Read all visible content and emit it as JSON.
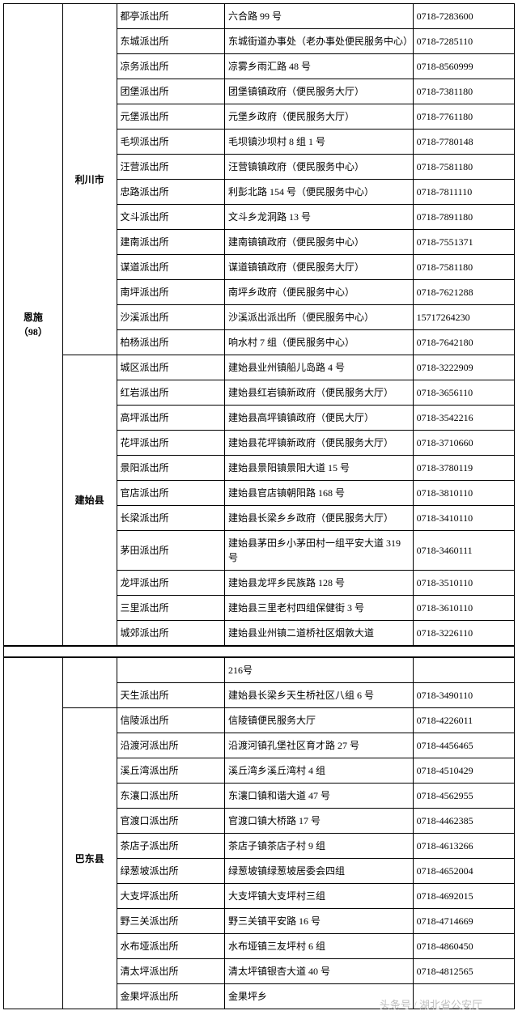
{
  "region": "恩施\n（98）",
  "watermark": "头条号 / 湖北省公安厅",
  "colwidths": {
    "region": 72,
    "city": 66,
    "station": 132,
    "addr": 230,
    "phone": 124
  },
  "colors": {
    "border": "#000000",
    "text": "#000000",
    "bg": "#ffffff",
    "watermark": "#bfbfbf"
  },
  "font": {
    "family": "SimSun",
    "size_pt": 9
  },
  "groups": [
    {
      "city": "利川市",
      "rows": [
        {
          "station": "都亭派出所",
          "addr": "六合路 99 号",
          "phone": "0718-7283600"
        },
        {
          "station": "东城派出所",
          "addr": "东城街道办事处（老办事处便民服务中心）",
          "phone": "0718-7285110"
        },
        {
          "station": "凉务派出所",
          "addr": "凉雾乡雨汇路 48 号",
          "phone": "0718-8560999"
        },
        {
          "station": "团堡派出所",
          "addr": "团堡镇镇政府（便民服务大厅）",
          "phone": "0718-7381180"
        },
        {
          "station": "元堡派出所",
          "addr": "元堡乡政府（便民服务大厅）",
          "phone": "0718-7761180"
        },
        {
          "station": "毛坝派出所",
          "addr": "毛坝镇沙坝村 8 组 1 号",
          "phone": "0718-7780148"
        },
        {
          "station": "汪营派出所",
          "addr": "汪营镇镇政府（便民服务中心）",
          "phone": "0718-7581180"
        },
        {
          "station": "忠路派出所",
          "addr": "利彭北路 154 号（便民服务中心）",
          "phone": "0718-7811110"
        },
        {
          "station": "文斗派出所",
          "addr": "文斗乡龙洞路 13 号",
          "phone": "0718-7891180"
        },
        {
          "station": "建南派出所",
          "addr": "建南镇镇政府（便民服务中心）",
          "phone": "0718-7551371"
        },
        {
          "station": "谋道派出所",
          "addr": "谋道镇镇政府（便民服务大厅）",
          "phone": "0718-7581180"
        },
        {
          "station": "南坪派出所",
          "addr": "南坪乡政府（便民服务中心）",
          "phone": "0718-7621288"
        },
        {
          "station": "沙溪派出所",
          "addr": "沙溪派出派出所（便民服务中心）",
          "phone": "15717264230"
        },
        {
          "station": "柏杨派出所",
          "addr": "响水村 7 组（便民服务中心）",
          "phone": "0718-7642180"
        }
      ]
    },
    {
      "city": "建始县",
      "rows": [
        {
          "station": "城区派出所",
          "addr": "建始县业州镇船儿岛路 4 号",
          "phone": "0718-3222909"
        },
        {
          "station": "红岩派出所",
          "addr": "建始县红岩镇新政府（便民服务大厅）",
          "phone": "0718-3656110"
        },
        {
          "station": "高坪派出所",
          "addr": "建始县高坪镇镇政府（便民大厅）",
          "phone": "0718-3542216"
        },
        {
          "station": "花坪派出所",
          "addr": "建始县花坪镇新政府（便民服务大厅）",
          "phone": "0718-3710660"
        },
        {
          "station": "景阳派出所",
          "addr": "建始县景阳镇景阳大道 15 号",
          "phone": "0718-3780119"
        },
        {
          "station": "官店派出所",
          "addr": "建始县官店镇朝阳路 168 号",
          "phone": "0718-3810110"
        },
        {
          "station": "长梁派出所",
          "addr": "建始县长梁乡乡政府（便民服务大厅）",
          "phone": "0718-3410110"
        },
        {
          "station": "茅田派出所",
          "addr": "建始县茅田乡小茅田村一组平安大道 319 号",
          "phone": "0718-3460111"
        },
        {
          "station": "龙坪派出所",
          "addr": "建始县龙坪乡民族路 128 号",
          "phone": "0718-3510110"
        },
        {
          "station": "三里派出所",
          "addr": "建始县三里老村四组保健街 3 号",
          "phone": "0718-3610110"
        },
        {
          "station": "城郊派出所",
          "addr": "建始县业州镇二道桥社区烟敦大道",
          "phone": "0718-3226110"
        }
      ],
      "tail_rows": [
        {
          "station": "",
          "addr": "216号",
          "phone": ""
        },
        {
          "station": "天生派出所",
          "addr": "建始县长梁乡天生桥社区八组 6 号",
          "phone": "0718-3490110"
        }
      ]
    },
    {
      "city": "巴东县",
      "rows": [
        {
          "station": "信陵派出所",
          "addr": "信陵镇便民服务大厅",
          "phone": "0718-4226011"
        },
        {
          "station": "沿渡河派出所",
          "addr": "沿渡河镇孔堡社区育才路 27 号",
          "phone": "0718-4456465"
        },
        {
          "station": "溪丘湾派出所",
          "addr": "溪丘湾乡溪丘湾村 4 组",
          "phone": "0718-4510429"
        },
        {
          "station": "东瀼口派出所",
          "addr": "东瀼口镇和谐大道 47 号",
          "phone": "0718-4562955"
        },
        {
          "station": "官渡口派出所",
          "addr": "官渡口镇大桥路 17 号",
          "phone": "0718-4462385"
        },
        {
          "station": "茶店子派出所",
          "addr": "茶店子镇茶店子村 9 组",
          "phone": "0718-4613266"
        },
        {
          "station": "绿葱坡派出所",
          "addr": "绿葱坡镇绿葱坡居委会四组",
          "phone": "0718-4652004"
        },
        {
          "station": "大支坪派出所",
          "addr": "大支坪镇大支坪村三组",
          "phone": "0718-4692015"
        },
        {
          "station": "野三关派出所",
          "addr": "野三关镇平安路 16 号",
          "phone": "0718-4714669"
        },
        {
          "station": "水布垭派出所",
          "addr": "水布垭镇三友坪村 6 组",
          "phone": "0718-4860450"
        },
        {
          "station": "清太坪派出所",
          "addr": "清太坪镇银杏大道 40 号",
          "phone": "0718-4812565"
        },
        {
          "station": "金果坪派出所",
          "addr": "金果坪乡",
          "phone": ""
        }
      ]
    }
  ]
}
